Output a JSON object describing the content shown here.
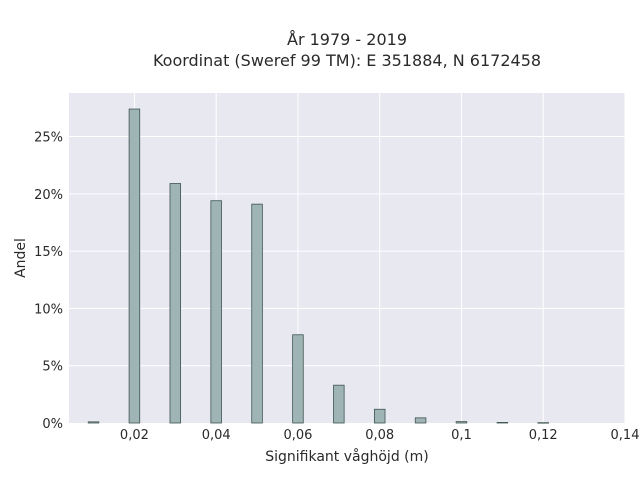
{
  "chart_data": {
    "type": "bar",
    "title": "År 1979 - 2019",
    "subtitle": "Koordinat (Sweref 99 TM): E 351884, N 6172458",
    "xlabel": "Signifikant våghöjd (m)",
    "ylabel": "Andel",
    "x": [
      0.01,
      0.02,
      0.03,
      0.04,
      0.05,
      0.06,
      0.07,
      0.08,
      0.09,
      0.1,
      0.11,
      0.12
    ],
    "values": [
      0.1,
      27.4,
      20.9,
      19.4,
      19.1,
      7.7,
      3.3,
      1.2,
      0.45,
      0.12,
      0.05,
      0.03
    ],
    "xlim": [
      0.004,
      0.14
    ],
    "ylim": [
      0,
      28.8
    ],
    "x_ticks": [
      0.02,
      0.04,
      0.06,
      0.08,
      0.1,
      0.12,
      0.14
    ],
    "x_tick_labels": [
      "0,02",
      "0,04",
      "0,06",
      "0,08",
      "0,1",
      "0,12",
      "0,14"
    ],
    "y_ticks": [
      0,
      5,
      10,
      15,
      20,
      25
    ],
    "y_tick_labels": [
      "0%",
      "5%",
      "10%",
      "15%",
      "20%",
      "25%"
    ],
    "grid": true,
    "colors": {
      "bar_fill": "#9fb5b5",
      "bar_stroke": "#3f5450",
      "plot_bg": "#e8e8f0",
      "grid": "#ffffff"
    }
  }
}
